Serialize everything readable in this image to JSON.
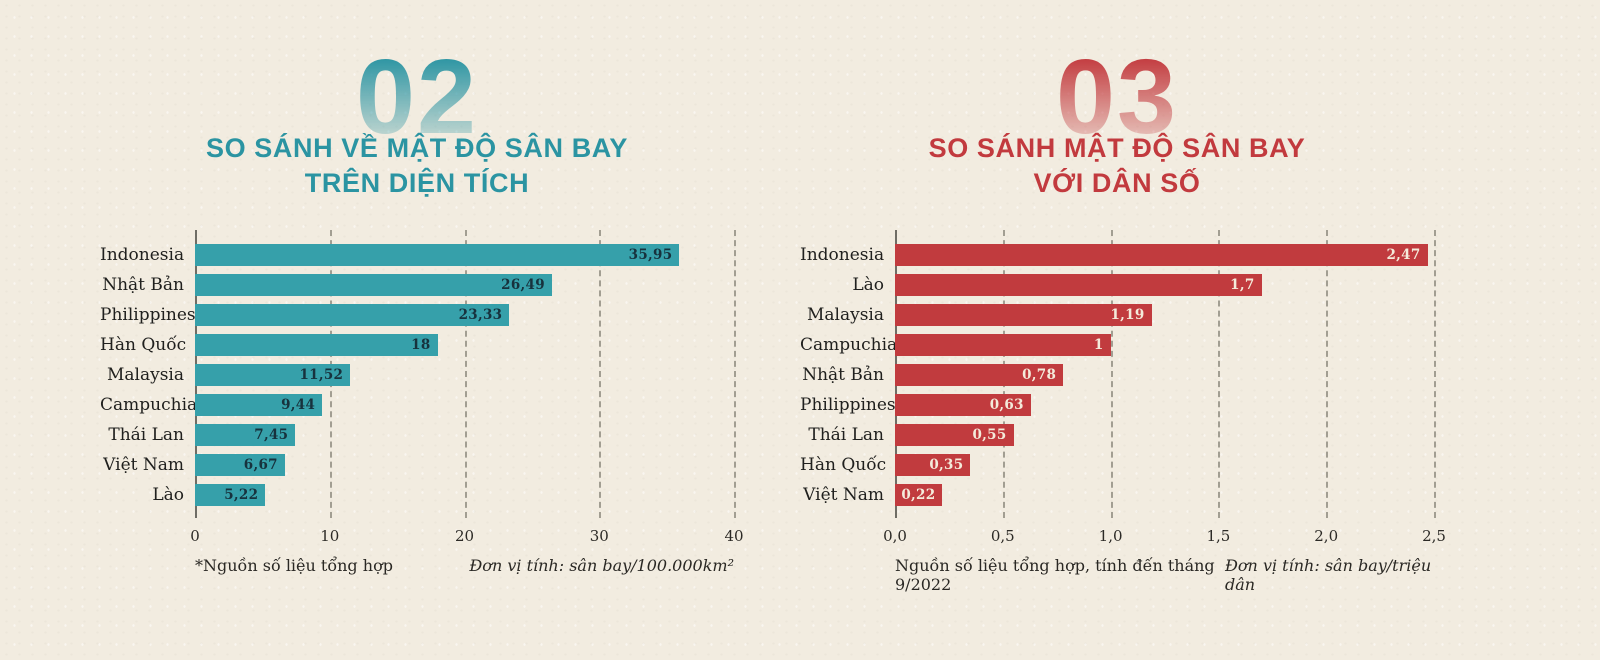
{
  "page": {
    "background_color": "#f2ece0"
  },
  "chart_data": [
    {
      "type": "bar",
      "orientation": "horizontal",
      "number": "02",
      "title": "SO SÁNH VỀ MẬT ĐỘ SÂN BAY TRÊN DIỆN TÍCH",
      "title_line1": "SO SÁNH VỀ MẬT ĐỘ SÂN BAY",
      "title_line2": "TRÊN DIỆN TÍCH",
      "categories": [
        "Indonesia",
        "Nhật Bản",
        "Philippines",
        "Hàn Quốc",
        "Malaysia",
        "Campuchia",
        "Thái Lan",
        "Việt Nam",
        "Lào"
      ],
      "values": [
        35.95,
        26.49,
        23.33,
        18,
        11.52,
        9.44,
        7.45,
        6.67,
        5.22
      ],
      "value_labels": [
        "35,95",
        "26,49",
        "23,33",
        "18",
        "11,52",
        "9,44",
        "7,45",
        "6,67",
        "5,22"
      ],
      "x_ticks": [
        "0",
        "10",
        "20",
        "30",
        "40"
      ],
      "xlim": [
        0,
        40
      ],
      "grid": "dashed-vertical",
      "source_note": "*Nguồn số liệu tổng hợp",
      "unit_note": "Đơn vị tính: sân bay/100.000km²",
      "accent_color": "#2b94a2",
      "bar_color": "#36a0aa",
      "value_text_color": "#17323d"
    },
    {
      "type": "bar",
      "orientation": "horizontal",
      "number": "03",
      "title": "SO SÁNH MẬT ĐỘ SÂN BAY VỚI DÂN SỐ",
      "title_line1": "SO SÁNH MẬT ĐỘ SÂN BAY",
      "title_line2": "VỚI DÂN SỐ",
      "categories": [
        "Indonesia",
        "Lào",
        "Malaysia",
        "Campuchia",
        "Nhật Bản",
        "Philippines",
        "Thái Lan",
        "Hàn Quốc",
        "Việt Nam"
      ],
      "values": [
        2.47,
        1.7,
        1.19,
        1,
        0.78,
        0.63,
        0.55,
        0.35,
        0.22
      ],
      "value_labels": [
        "2,47",
        "1,7",
        "1,19",
        "1",
        "0,78",
        "0,63",
        "0,55",
        "0,35",
        "0,22"
      ],
      "x_ticks": [
        "0,0",
        "0,5",
        "1,0",
        "1,5",
        "2,0",
        "2,5"
      ],
      "xlim": [
        0,
        2.5
      ],
      "grid": "dashed-vertical",
      "source_note": "Nguồn số liệu tổng hợp, tính đến tháng 9/2022",
      "unit_note": "Đơn vị tính: sân bay/triệu dân",
      "accent_color": "#c23a3e",
      "bar_color": "#c13b3e",
      "value_text_color": "#f4ebdb"
    }
  ]
}
